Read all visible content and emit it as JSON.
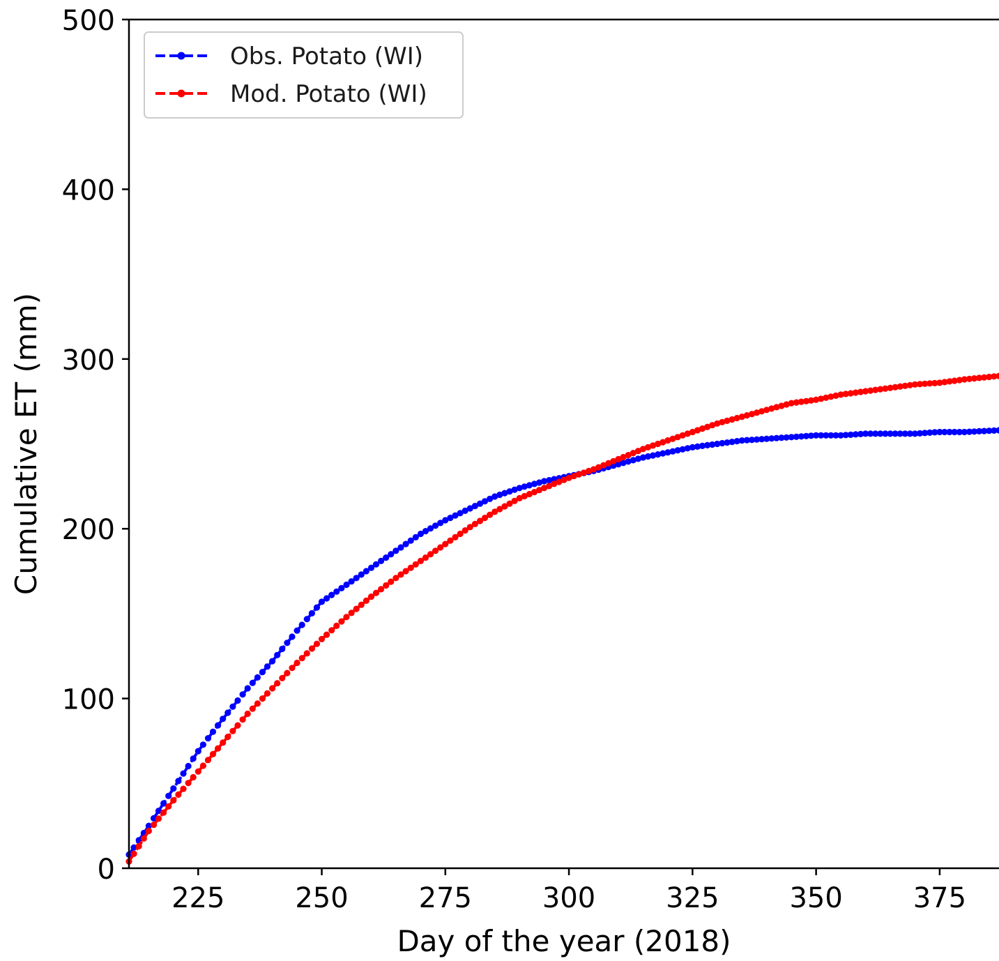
{
  "chart_data": {
    "type": "line",
    "xlabel": "Day of the year (2018)",
    "ylabel": "Cumulative ET (mm)",
    "xlim": [
      211,
      387
    ],
    "ylim": [
      0,
      500
    ],
    "x_ticks": [
      225,
      250,
      275,
      300,
      325,
      350,
      375
    ],
    "y_ticks": [
      0,
      100,
      200,
      300,
      400,
      500
    ],
    "grid": false,
    "legend_position": "top-left",
    "series": [
      {
        "name": "Obs. Potato (WI)",
        "color": "#0000ff",
        "linestyle": "dashed",
        "marker": "circle",
        "x": [
          211,
          215,
          220,
          225,
          230,
          235,
          240,
          245,
          250,
          255,
          260,
          265,
          270,
          275,
          280,
          285,
          290,
          295,
          300,
          305,
          310,
          315,
          320,
          325,
          330,
          335,
          340,
          345,
          350,
          355,
          360,
          365,
          370,
          375,
          380,
          387
        ],
        "y": [
          8,
          25,
          47,
          69,
          88,
          106,
          122,
          140,
          157,
          167,
          177,
          187,
          197,
          205,
          212,
          219,
          224,
          228,
          231,
          234,
          238,
          242,
          245,
          248,
          250,
          252,
          253,
          254,
          255,
          255,
          256,
          256,
          256,
          257,
          257,
          258
        ]
      },
      {
        "name": "Mod. Potato (WI)",
        "color": "#ff0000",
        "linestyle": "dashed",
        "marker": "circle",
        "x": [
          211,
          215,
          220,
          225,
          230,
          235,
          240,
          245,
          250,
          255,
          260,
          265,
          270,
          275,
          280,
          285,
          290,
          295,
          300,
          305,
          310,
          315,
          320,
          325,
          330,
          335,
          340,
          345,
          350,
          355,
          360,
          365,
          370,
          375,
          380,
          387
        ],
        "y": [
          4,
          22,
          40,
          57,
          74,
          91,
          106,
          121,
          135,
          148,
          160,
          171,
          181,
          191,
          201,
          210,
          218,
          224,
          230,
          235,
          241,
          247,
          252,
          257,
          262,
          266,
          270,
          274,
          276,
          279,
          281,
          283,
          285,
          286,
          288,
          290
        ]
      }
    ]
  }
}
